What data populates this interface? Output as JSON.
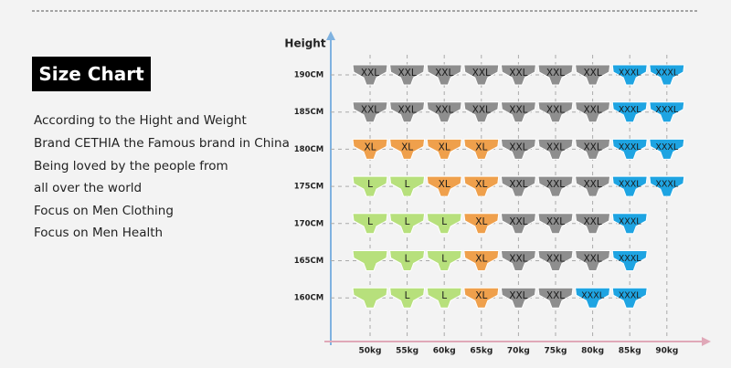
{
  "header": {
    "title": "Size Chart"
  },
  "description": [
    "According to the Hight and Weight",
    "Brand CETHIA the Famous brand in China",
    "Being loved by the people from",
    "all over the world",
    "Focus on Men Clothing",
    "Focus on Men Health"
  ],
  "grid": {
    "y_axis_label": "Height",
    "columns": [
      "50kg",
      "55kg",
      "60kg",
      "65kg",
      "70kg",
      "75kg",
      "80kg",
      "85kg",
      "90kg"
    ],
    "rows": [
      {
        "height": "190CM",
        "cells": [
          "XXL",
          "XXL",
          "XXL",
          "XXL",
          "XXL",
          "XXL",
          "XXL",
          "XXXL",
          "XXXL"
        ],
        "colors": [
          "#8e8e8e",
          "#8e8e8e",
          "#8e8e8e",
          "#8e8e8e",
          "#8e8e8e",
          "#8e8e8e",
          "#8e8e8e",
          "#1ea4e2",
          "#1ea4e2"
        ]
      },
      {
        "height": "185CM",
        "cells": [
          "XXL",
          "XXL",
          "XXL",
          "XXL",
          "XXL",
          "XXL",
          "XXL",
          "XXXL",
          "XXXL"
        ],
        "colors": [
          "#8e8e8e",
          "#8e8e8e",
          "#8e8e8e",
          "#8e8e8e",
          "#8e8e8e",
          "#8e8e8e",
          "#8e8e8e",
          "#1ea4e2",
          "#1ea4e2"
        ]
      },
      {
        "height": "180CM",
        "cells": [
          "XL",
          "XL",
          "XL",
          "XL",
          "XXL",
          "XXL",
          "XXL",
          "XXXL",
          "XXXL"
        ],
        "colors": [
          "#efa04c",
          "#efa04c",
          "#efa04c",
          "#efa04c",
          "#8e8e8e",
          "#8e8e8e",
          "#8e8e8e",
          "#1ea4e2",
          "#1ea4e2"
        ]
      },
      {
        "height": "175CM",
        "cells": [
          "L",
          "L",
          "XL",
          "XL",
          "XXL",
          "XXL",
          "XXL",
          "XXXL",
          "XXXL"
        ],
        "colors": [
          "#b7e07c",
          "#b7e07c",
          "#efa04c",
          "#efa04c",
          "#8e8e8e",
          "#8e8e8e",
          "#8e8e8e",
          "#1ea4e2",
          "#1ea4e2"
        ]
      },
      {
        "height": "170CM",
        "cells": [
          "L",
          "L",
          "L",
          "XL",
          "XXL",
          "XXL",
          "XXL",
          "XXXL"
        ],
        "colors": [
          "#b7e07c",
          "#b7e07c",
          "#b7e07c",
          "#efa04c",
          "#8e8e8e",
          "#8e8e8e",
          "#8e8e8e",
          "#1ea4e2"
        ]
      },
      {
        "height": "165CM",
        "cells": [
          null,
          "L",
          "L",
          "XL",
          "XXL",
          "XXL",
          "XXL",
          "XXXL"
        ],
        "colors": [
          "#b7e07c",
          "#b7e07c",
          "#b7e07c",
          "#efa04c",
          "#8e8e8e",
          "#8e8e8e",
          "#8e8e8e",
          "#1ea4e2"
        ]
      },
      {
        "height": "160CM",
        "cells": [
          null,
          "L",
          "L",
          "XL",
          "XXL",
          "XXL",
          "XXXL",
          "XXXL"
        ],
        "colors": [
          "#b7e07c",
          "#b7e07c",
          "#b7e07c",
          "#efa04c",
          "#8e8e8e",
          "#8e8e8e",
          "#1ea4e2",
          "#1ea4e2"
        ]
      }
    ]
  }
}
